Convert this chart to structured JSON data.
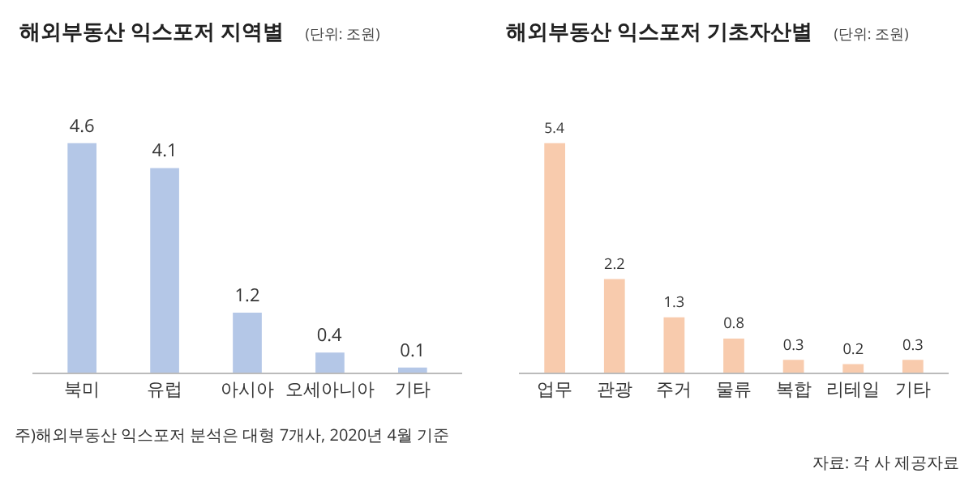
{
  "chart_data": [
    {
      "type": "bar",
      "title": "해외부동산 익스포저 지역별",
      "subtitle": "(단위: 조원)",
      "categories": [
        "북미",
        "유럽",
        "아시아",
        "오세아니아",
        "기타"
      ],
      "values": [
        4.6,
        4.1,
        1.2,
        0.4,
        0.1
      ],
      "color": "#b4c7e7",
      "data_labels": true,
      "annotations": [
        "주)해외부동산 익스포저 분석은 대형 7개사, 2020년 4월 기준"
      ]
    },
    {
      "type": "bar",
      "title": "해외부동산 익스포저 기초자산별",
      "subtitle": "(단위: 조원)",
      "categories": [
        "업무",
        "관광",
        "주거",
        "물류",
        "복합",
        "리테일",
        "기타"
      ],
      "values": [
        5.4,
        2.2,
        1.3,
        0.8,
        0.3,
        0.2,
        0.3
      ],
      "color": "#f8cbad",
      "data_labels": true,
      "annotations": [
        "자료: 각 사 제공자료"
      ]
    }
  ]
}
